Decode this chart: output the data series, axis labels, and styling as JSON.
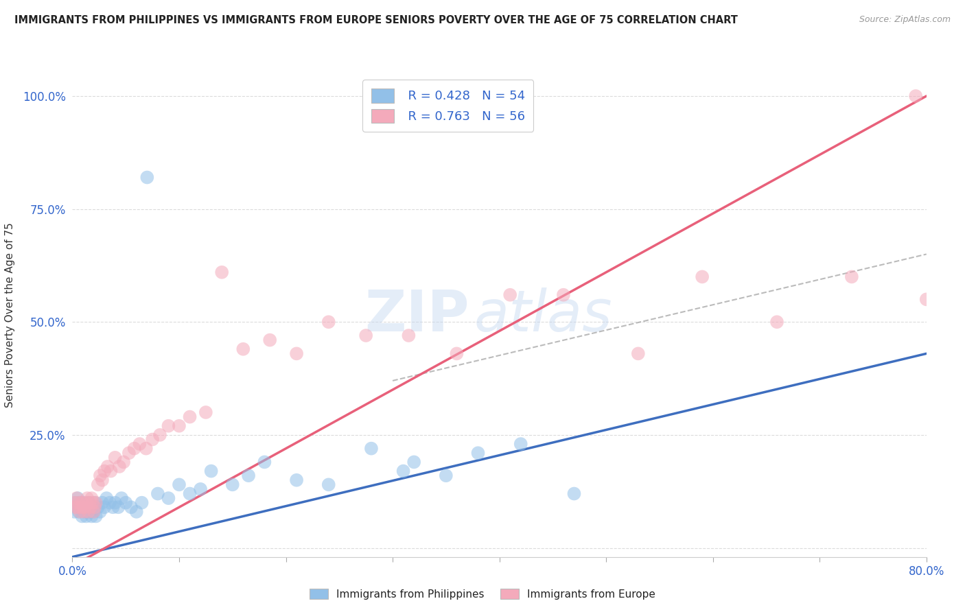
{
  "title": "IMMIGRANTS FROM PHILIPPINES VS IMMIGRANTS FROM EUROPE SENIORS POVERTY OVER THE AGE OF 75 CORRELATION CHART",
  "source": "Source: ZipAtlas.com",
  "ylabel": "Seniors Poverty Over the Age of 75",
  "xlim": [
    0.0,
    0.8
  ],
  "ylim": [
    -0.02,
    1.05
  ],
  "legend_r1": "R = 0.428",
  "legend_n1": "N = 54",
  "legend_r2": "R = 0.763",
  "legend_n2": "N = 56",
  "color_blue": "#92C0E8",
  "color_pink": "#F4AABB",
  "color_blue_line": "#3E6EBF",
  "color_pink_line": "#E8607A",
  "color_gray_dash": "#AAAAAA",
  "background": "#FFFFFF",
  "watermark_zip": "ZIP",
  "watermark_atlas": "atlas",
  "philippines_x": [
    0.002,
    0.003,
    0.004,
    0.005,
    0.006,
    0.007,
    0.008,
    0.009,
    0.01,
    0.011,
    0.012,
    0.013,
    0.014,
    0.015,
    0.016,
    0.017,
    0.018,
    0.019,
    0.02,
    0.021,
    0.022,
    0.024,
    0.026,
    0.028,
    0.03,
    0.032,
    0.035,
    0.038,
    0.04,
    0.043,
    0.046,
    0.05,
    0.055,
    0.06,
    0.065,
    0.07,
    0.08,
    0.09,
    0.1,
    0.11,
    0.12,
    0.13,
    0.15,
    0.165,
    0.18,
    0.21,
    0.24,
    0.28,
    0.31,
    0.35,
    0.38,
    0.42,
    0.47,
    0.32
  ],
  "philippines_y": [
    0.08,
    0.1,
    0.09,
    0.11,
    0.08,
    0.1,
    0.09,
    0.07,
    0.1,
    0.08,
    0.09,
    0.07,
    0.08,
    0.1,
    0.09,
    0.08,
    0.07,
    0.09,
    0.08,
    0.1,
    0.07,
    0.09,
    0.08,
    0.1,
    0.09,
    0.11,
    0.1,
    0.09,
    0.1,
    0.09,
    0.11,
    0.1,
    0.09,
    0.08,
    0.1,
    0.82,
    0.12,
    0.11,
    0.14,
    0.12,
    0.13,
    0.17,
    0.14,
    0.16,
    0.19,
    0.15,
    0.14,
    0.22,
    0.17,
    0.16,
    0.21,
    0.23,
    0.12,
    0.19
  ],
  "europe_x": [
    0.002,
    0.003,
    0.004,
    0.005,
    0.006,
    0.007,
    0.008,
    0.009,
    0.01,
    0.011,
    0.012,
    0.013,
    0.014,
    0.015,
    0.016,
    0.017,
    0.018,
    0.019,
    0.02,
    0.021,
    0.022,
    0.024,
    0.026,
    0.028,
    0.03,
    0.033,
    0.036,
    0.04,
    0.044,
    0.048,
    0.053,
    0.058,
    0.063,
    0.069,
    0.075,
    0.082,
    0.09,
    0.1,
    0.11,
    0.125,
    0.14,
    0.16,
    0.185,
    0.21,
    0.24,
    0.275,
    0.315,
    0.36,
    0.41,
    0.46,
    0.53,
    0.59,
    0.66,
    0.73,
    0.79,
    0.8
  ],
  "europe_y": [
    0.1,
    0.09,
    0.11,
    0.09,
    0.1,
    0.08,
    0.09,
    0.1,
    0.09,
    0.08,
    0.09,
    0.1,
    0.11,
    0.08,
    0.1,
    0.09,
    0.11,
    0.1,
    0.08,
    0.09,
    0.1,
    0.14,
    0.16,
    0.15,
    0.17,
    0.18,
    0.17,
    0.2,
    0.18,
    0.19,
    0.21,
    0.22,
    0.23,
    0.22,
    0.24,
    0.25,
    0.27,
    0.27,
    0.29,
    0.3,
    0.61,
    0.44,
    0.46,
    0.43,
    0.5,
    0.47,
    0.47,
    0.43,
    0.56,
    0.56,
    0.43,
    0.6,
    0.5,
    0.6,
    1.0,
    0.55
  ],
  "ph_line_x0": 0.0,
  "ph_line_y0": -0.02,
  "ph_line_x1": 0.8,
  "ph_line_y1": 0.43,
  "eu_line_x0": 0.0,
  "eu_line_y0": -0.04,
  "eu_line_x1": 0.8,
  "eu_line_y1": 1.0,
  "dash_line_x0": 0.3,
  "dash_line_y0": 0.37,
  "dash_line_x1": 0.8,
  "dash_line_y1": 0.65
}
